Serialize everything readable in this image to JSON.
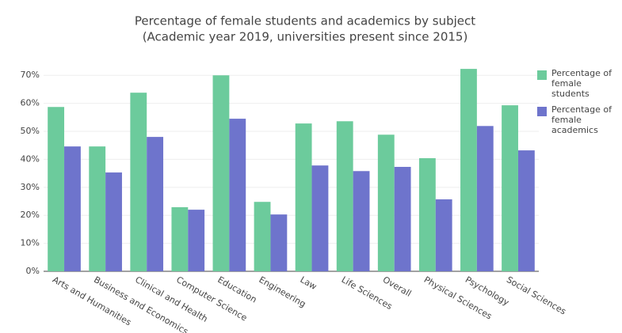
{
  "chart_data": {
    "type": "bar",
    "title": "Percentage of female students and academics by subject",
    "subtitle": "(Academic year 2019, universities present since 2015)",
    "categories": [
      "Arts and Humanities",
      "Business and Economics",
      "Clinical and Health",
      "Computer Science",
      "Education",
      "Engineering",
      "Law",
      "Life Sciences",
      "Overall",
      "Physical Sciences",
      "Psychology",
      "Social Sciences"
    ],
    "series": [
      {
        "name": "Percentage of female students",
        "color": "#6ccb9c",
        "values": [
          58.7,
          44.6,
          63.8,
          22.9,
          70.0,
          24.8,
          52.8,
          53.6,
          48.8,
          40.4,
          72.3,
          59.3
        ]
      },
      {
        "name": "Percentage of female academics",
        "color": "#6e74cc",
        "values": [
          44.6,
          35.3,
          48.0,
          22.0,
          54.5,
          20.3,
          37.8,
          35.8,
          37.3,
          25.7,
          51.9,
          43.2
        ]
      }
    ],
    "ylim": [
      0,
      76
    ],
    "yticks": [
      {
        "value": 0,
        "label": "0%"
      },
      {
        "value": 10,
        "label": "10%"
      },
      {
        "value": 20,
        "label": "20%"
      },
      {
        "value": 30,
        "label": "30%"
      },
      {
        "value": 40,
        "label": "40%"
      },
      {
        "value": 50,
        "label": "50%"
      },
      {
        "value": 60,
        "label": "60%"
      },
      {
        "value": 70,
        "label": "70%"
      }
    ],
    "grid": true
  }
}
